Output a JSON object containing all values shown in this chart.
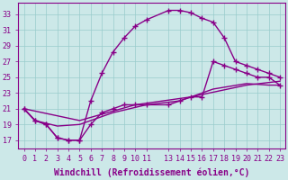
{
  "xlabel": "Windchill (Refroidissement éolien,°C)",
  "ylabel": "",
  "bg_color": "#cce8e8",
  "line_color": "#880088",
  "grid_color": "#99cccc",
  "xlim": [
    -0.5,
    23.5
  ],
  "ylim": [
    16,
    34.5
  ],
  "xticks": [
    0,
    1,
    2,
    3,
    4,
    5,
    6,
    7,
    8,
    9,
    10,
    11,
    13,
    14,
    15,
    16,
    17,
    18,
    19,
    20,
    21,
    22,
    23
  ],
  "yticks": [
    17,
    19,
    21,
    23,
    25,
    27,
    29,
    31,
    33
  ],
  "line1_x": [
    0,
    1,
    2,
    3,
    4,
    5,
    6,
    7,
    8,
    9,
    10,
    11,
    13,
    14,
    15,
    16,
    17,
    18,
    19,
    20,
    21,
    22,
    23
  ],
  "line1_y": [
    21.0,
    19.5,
    19.0,
    17.3,
    17.0,
    17.0,
    22.0,
    25.5,
    28.2,
    30.0,
    31.5,
    32.3,
    33.5,
    33.5,
    33.2,
    32.5,
    32.0,
    30.0,
    27.0,
    26.5,
    26.0,
    25.5,
    25.0
  ],
  "line2_x": [
    0,
    1,
    2,
    3,
    4,
    5,
    6,
    7,
    8,
    9,
    10,
    11,
    13,
    14,
    15,
    16,
    17,
    18,
    19,
    20,
    21,
    22,
    23
  ],
  "line2_y": [
    21.0,
    19.5,
    19.0,
    17.3,
    17.0,
    17.0,
    19.0,
    20.5,
    21.0,
    21.5,
    21.5,
    21.5,
    21.5,
    22.0,
    22.5,
    22.5,
    27.0,
    26.5,
    26.0,
    25.5,
    25.0,
    25.0,
    24.0
  ],
  "line3_x": [
    0,
    1,
    3,
    5,
    8,
    11,
    14,
    17,
    20,
    22,
    23
  ],
  "line3_y": [
    21.0,
    19.5,
    18.8,
    19.0,
    20.5,
    21.5,
    22.0,
    23.5,
    24.2,
    24.0,
    24.0
  ],
  "line4_x": [
    0,
    5,
    10,
    15,
    20,
    23
  ],
  "line4_y": [
    21.0,
    19.5,
    21.5,
    22.5,
    24.0,
    24.5
  ],
  "marker": "+",
  "markersize": 4,
  "linewidth": 1.0,
  "tick_fontsize": 6,
  "label_fontsize": 7
}
